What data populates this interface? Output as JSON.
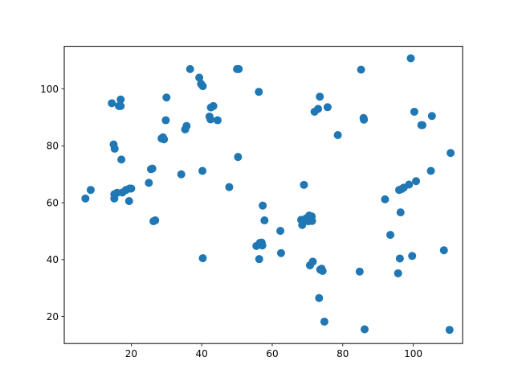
{
  "chart_data": {
    "type": "scatter",
    "title": "",
    "xlabel": "",
    "ylabel": "",
    "xlim": [
      1,
      114
    ],
    "ylim": [
      10.5,
      115
    ],
    "grid": false,
    "color": "#1f77b4",
    "x_ticks": [
      20,
      40,
      60,
      80,
      100
    ],
    "y_ticks": [
      20,
      40,
      60,
      80,
      100
    ],
    "points": [
      [
        7,
        61.5
      ],
      [
        8.5,
        64.5
      ],
      [
        14.5,
        95
      ],
      [
        15,
        80.5
      ],
      [
        15.3,
        79
      ],
      [
        15.2,
        61.5
      ],
      [
        15.2,
        63
      ],
      [
        16,
        63.5
      ],
      [
        16.5,
        94
      ],
      [
        17,
        96.3
      ],
      [
        17,
        94
      ],
      [
        17.2,
        75.2
      ],
      [
        17.5,
        63.6
      ],
      [
        18.5,
        64.5
      ],
      [
        19.4,
        60.6
      ],
      [
        19.5,
        65
      ],
      [
        20,
        65
      ],
      [
        25,
        67
      ],
      [
        25.6,
        71.8
      ],
      [
        26,
        72
      ],
      [
        26.3,
        53.5
      ],
      [
        26.8,
        53.8
      ],
      [
        28.6,
        82.6
      ],
      [
        29,
        83
      ],
      [
        29.3,
        82.3
      ],
      [
        29.8,
        89
      ],
      [
        30,
        97
      ],
      [
        34.2,
        70
      ],
      [
        35.3,
        85.8
      ],
      [
        35.7,
        87
      ],
      [
        36.7,
        107
      ],
      [
        39.3,
        104
      ],
      [
        39.8,
        101.8
      ],
      [
        40.3,
        101
      ],
      [
        40.2,
        71.2
      ],
      [
        40.3,
        40.5
      ],
      [
        42.2,
        90.3
      ],
      [
        42.5,
        89.3
      ],
      [
        42.6,
        93.5
      ],
      [
        43.3,
        94
      ],
      [
        44.5,
        89
      ],
      [
        47.8,
        65.5
      ],
      [
        50,
        107
      ],
      [
        50.5,
        107
      ],
      [
        50.3,
        76.1
      ],
      [
        55.5,
        44.8
      ],
      [
        56.2,
        99
      ],
      [
        56.5,
        45.9
      ],
      [
        56.3,
        40.2
      ],
      [
        57,
        46
      ],
      [
        57.2,
        45
      ],
      [
        57.3,
        59
      ],
      [
        57.8,
        53.8
      ],
      [
        62.3,
        50.1
      ],
      [
        62.5,
        42.3
      ],
      [
        68.2,
        54
      ],
      [
        68.5,
        52.2
      ],
      [
        69,
        66.3
      ],
      [
        69.6,
        54.5
      ],
      [
        70.3,
        53.5
      ],
      [
        70.5,
        55.5
      ],
      [
        70.7,
        38
      ],
      [
        71.3,
        53.6
      ],
      [
        71.5,
        39.3
      ],
      [
        71.2,
        55.2
      ],
      [
        72,
        92
      ],
      [
        73,
        93
      ],
      [
        73.3,
        26.5
      ],
      [
        73.5,
        97.3
      ],
      [
        73.6,
        36.5
      ],
      [
        74,
        36.8
      ],
      [
        74.3,
        36
      ],
      [
        74.8,
        18.2
      ],
      [
        75.7,
        93.6
      ],
      [
        78.6,
        83.8
      ],
      [
        84.8,
        35.8
      ],
      [
        85.2,
        106.8
      ],
      [
        85.9,
        89.8
      ],
      [
        86,
        89.2
      ],
      [
        86.2,
        15.5
      ],
      [
        92,
        61.2
      ],
      [
        93.5,
        48.7
      ],
      [
        95.7,
        35.2
      ],
      [
        96,
        64.5
      ],
      [
        96.2,
        40.4
      ],
      [
        96.4,
        56.6
      ],
      [
        96.7,
        64.8
      ],
      [
        97.3,
        65.3
      ],
      [
        98.8,
        66.4
      ],
      [
        99.3,
        110.8
      ],
      [
        99.7,
        41.3
      ],
      [
        100.3,
        92
      ],
      [
        100.8,
        67.6
      ],
      [
        102.3,
        87.3
      ],
      [
        102.6,
        87.3
      ],
      [
        105,
        71.2
      ],
      [
        105.3,
        90.5
      ],
      [
        108.7,
        43.3
      ],
      [
        110.3,
        15.3
      ],
      [
        110.6,
        77.5
      ]
    ]
  }
}
